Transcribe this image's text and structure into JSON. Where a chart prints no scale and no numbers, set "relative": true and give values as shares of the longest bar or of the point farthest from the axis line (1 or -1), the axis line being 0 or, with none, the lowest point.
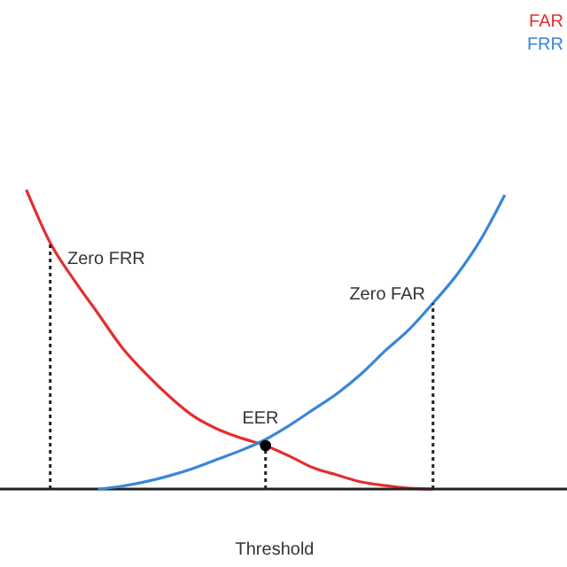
{
  "chart_data": {
    "type": "line",
    "relative": true,
    "xlabel": "Threshold",
    "legend": "top right",
    "line_style": "solid",
    "marker": "none",
    "categories": [
      null,
      null,
      null,
      null,
      null,
      null,
      null,
      null,
      null,
      null,
      null,
      null,
      null,
      null,
      null,
      null,
      null,
      null,
      null,
      null,
      null
    ],
    "series": [
      {
        "name": "FAR",
        "color": "#e03030",
        "values": [
          1,
          0.822,
          0.698,
          0.586,
          0.473,
          0.385,
          0.308,
          0.243,
          0.2,
          0.17,
          0.145,
          0.11,
          0.071,
          0.047,
          0.024,
          0.012,
          0.003,
          0,
          null,
          null,
          null
        ]
      },
      {
        "name": "FRR",
        "color": "#3a86d8",
        "values": [
          null,
          null,
          null,
          0,
          0.01,
          0.025,
          0.045,
          0.07,
          0.1,
          0.13,
          0.166,
          0.213,
          0.266,
          0.32,
          0.385,
          0.462,
          0.533,
          0.621,
          0.716,
          0.834,
          0.982
        ]
      }
    ],
    "annotations": [
      "Zero FRR",
      "EER",
      "Zero FAR"
    ]
  }
}
